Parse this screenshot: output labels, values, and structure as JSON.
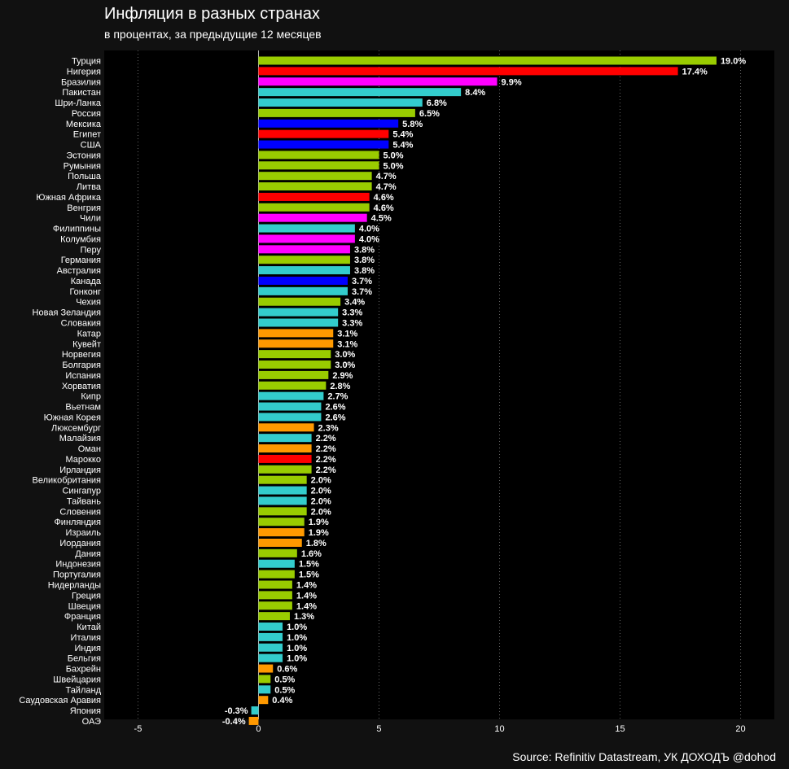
{
  "header": {
    "title": "Инфляция в разных странах",
    "subtitle": "в процентах, за предыдущие 12 месяцев"
  },
  "footer": {
    "source": "Source: Refinitiv Datastream, УК ДОХОДЪ @dohod"
  },
  "colors": {
    "background": "#111111",
    "plot_background": "#000000",
    "grid": "#666666"
  },
  "chart_data": {
    "type": "bar",
    "orientation": "horizontal",
    "title": "Инфляция в разных странах",
    "subtitle": "в процентах, за предыдущие 12 месяцев",
    "xlim": [
      -6.4,
      21.4
    ],
    "xticks": [
      -5,
      0,
      5,
      10,
      15,
      20
    ],
    "grid": "vertical dotted",
    "value_suffix": "%",
    "categories": [
      "Турция",
      "Нигерия",
      "Бразилия",
      "Пакистан",
      "Шри-Ланка",
      "Россия",
      "Мексика",
      "Египет",
      "США",
      "Эстония",
      "Румыния",
      "Польша",
      "Литва",
      "Южная Африка",
      "Венгрия",
      "Чили",
      "Филиппины",
      "Колумбия",
      "Перу",
      "Германия",
      "Австралия",
      "Канада",
      "Гонконг",
      "Чехия",
      "Новая Зеландия",
      "Словакия",
      "Катар",
      "Кувейт",
      "Норвегия",
      "Болгария",
      "Испания",
      "Хорватия",
      "Кипр",
      "Вьетнам",
      "Южная Корея",
      "Люксембург",
      "Малайзия",
      "Оман",
      "Марокко",
      "Ирландия",
      "Великобритания",
      "Сингапур",
      "Тайвань",
      "Словения",
      "Финляндия",
      "Израиль",
      "Иордания",
      "Дания",
      "Индонезия",
      "Португалия",
      "Нидерланды",
      "Греция",
      "Швеция",
      "Франция",
      "Китай",
      "Италия",
      "Индия",
      "Бельгия",
      "Бахрейн",
      "Швейцария",
      "Тайланд",
      "Саудовская Аравия",
      "Япония",
      "ОАЭ"
    ],
    "values": [
      19.0,
      17.4,
      9.9,
      8.4,
      6.8,
      6.5,
      5.8,
      5.4,
      5.4,
      5.0,
      5.0,
      4.7,
      4.7,
      4.6,
      4.6,
      4.5,
      4.0,
      4.0,
      3.8,
      3.8,
      3.8,
      3.7,
      3.7,
      3.4,
      3.3,
      3.3,
      3.1,
      3.1,
      3.0,
      3.0,
      2.9,
      2.8,
      2.7,
      2.6,
      2.6,
      2.3,
      2.2,
      2.2,
      2.2,
      2.2,
      2.0,
      2.0,
      2.0,
      2.0,
      1.9,
      1.9,
      1.8,
      1.6,
      1.5,
      1.5,
      1.4,
      1.4,
      1.4,
      1.3,
      1.0,
      1.0,
      1.0,
      1.0,
      0.6,
      0.5,
      0.5,
      0.4,
      -0.3,
      -0.4
    ],
    "bar_colors": [
      "#99cc00",
      "#ff0000",
      "#ff00ff",
      "#33cccc",
      "#33cccc",
      "#99cc00",
      "#0000ff",
      "#ff0000",
      "#0000ff",
      "#99cc00",
      "#99cc00",
      "#99cc00",
      "#99cc00",
      "#ff0000",
      "#99cc00",
      "#ff00ff",
      "#33cccc",
      "#ff00ff",
      "#ff00ff",
      "#99cc00",
      "#33cccc",
      "#0000ff",
      "#33cccc",
      "#99cc00",
      "#33cccc",
      "#33cccc",
      "#ff9900",
      "#ff9900",
      "#99cc00",
      "#99cc00",
      "#99cc00",
      "#99cc00",
      "#33cccc",
      "#33cccc",
      "#33cccc",
      "#ff9900",
      "#33cccc",
      "#ff9900",
      "#ff0000",
      "#99cc00",
      "#99cc00",
      "#33cccc",
      "#33cccc",
      "#99cc00",
      "#99cc00",
      "#ff9900",
      "#ff9900",
      "#99cc00",
      "#33cccc",
      "#99cc00",
      "#99cc00",
      "#99cc00",
      "#99cc00",
      "#99cc00",
      "#33cccc",
      "#33cccc",
      "#33cccc",
      "#33cccc",
      "#ff9900",
      "#99cc00",
      "#33cccc",
      "#ff9900",
      "#33cccc",
      "#ff9900"
    ]
  }
}
